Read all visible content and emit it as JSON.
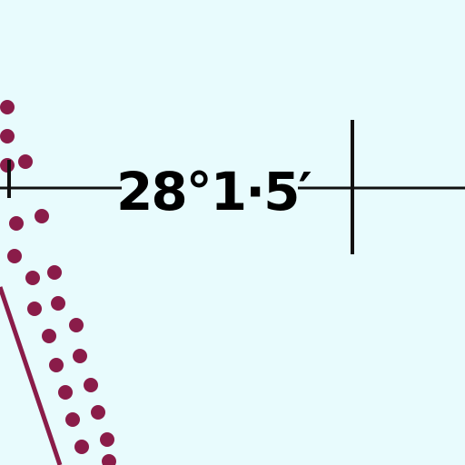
{
  "map": {
    "colors": {
      "water": "#e8fbfd",
      "boundary_dots": "#8a1c49",
      "boundary_line": "#8a1c49",
      "graticule": "#111111",
      "label": "#000000"
    },
    "features": {
      "latitude_line": {
        "label": "28°1·5′"
      },
      "boundary": {
        "style": "dotted band with solid edge line"
      },
      "tick_mark": {
        "style": "vertical tick crossing latitude line"
      }
    }
  }
}
